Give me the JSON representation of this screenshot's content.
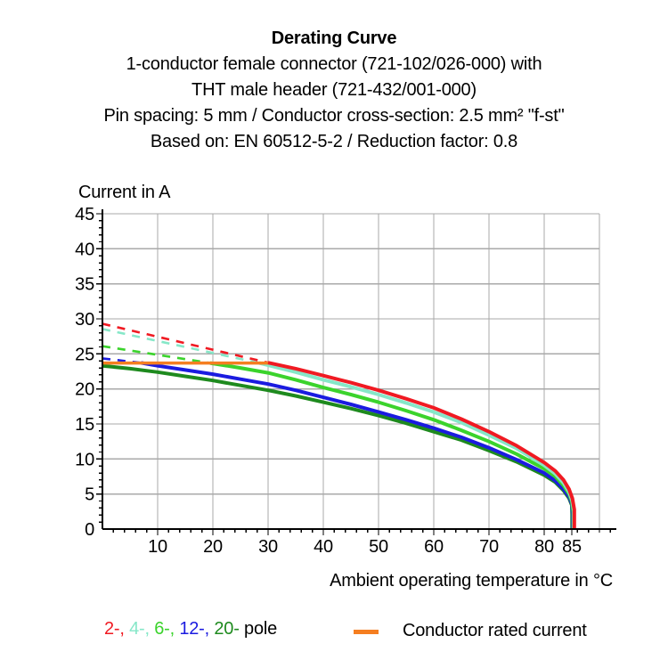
{
  "header": {
    "title": "Derating Curve",
    "subtitle_lines": [
      "1-conductor female connector (721-102/026-000) with",
      "THT male header (721-432/001-000)",
      "Pin spacing: 5 mm / Conductor cross-section: 2.5 mm² \"f-st\"",
      "Based on: EN 60512-5-2 / Reduction factor: 0.8"
    ]
  },
  "chart_data": {
    "type": "line",
    "title": "Derating Curve",
    "ylabel": "Current in A",
    "xlabel": "Ambient operating temperature in °C",
    "xlim": [
      0,
      93
    ],
    "ylim": [
      0,
      45
    ],
    "x_major_ticks": [
      10,
      20,
      30,
      40,
      50,
      60,
      70,
      80,
      85
    ],
    "x_minor_step": 2,
    "y_major_ticks": [
      0,
      5,
      10,
      15,
      20,
      25,
      30,
      35,
      40,
      45
    ],
    "y_minor_step": 1,
    "grid": {
      "color": "#a9a9a9",
      "x_lines": [
        10,
        20,
        30,
        40,
        50,
        60,
        70,
        80,
        90
      ],
      "y_lines": [
        5,
        10,
        15,
        20,
        25,
        30,
        35,
        40,
        45
      ]
    },
    "conductor_rated_current_A": 23.7,
    "max_temperature_C": 85,
    "series": [
      {
        "name": "2-pole-limit-dashed",
        "pole": "2",
        "style": "dashed",
        "width": 2.6,
        "color": "#f01a22",
        "points": [
          [
            0,
            29.3
          ],
          [
            30,
            23.75
          ]
        ]
      },
      {
        "name": "4-pole-limit-dashed",
        "pole": "4",
        "style": "dashed",
        "width": 2.6,
        "color": "#86e7c8",
        "points": [
          [
            0,
            28.55
          ],
          [
            28.4,
            23.7
          ]
        ]
      },
      {
        "name": "6-pole-limit-dashed",
        "pole": "6",
        "style": "dashed",
        "width": 2.6,
        "color": "#3bd32c",
        "points": [
          [
            0,
            26.1
          ],
          [
            19.5,
            23.7
          ]
        ]
      },
      {
        "name": "12-pole-limit-dashed",
        "pole": "12",
        "style": "dashed",
        "width": 2.6,
        "color": "#1b1be0",
        "points": [
          [
            0,
            24.35
          ],
          [
            7,
            23.72
          ]
        ]
      },
      {
        "name": "20-pole",
        "pole": "20",
        "style": "solid",
        "width": 4,
        "color": "#1e8a1e",
        "points": [
          [
            0,
            23.3
          ],
          [
            5,
            22.9
          ],
          [
            10,
            22.4
          ],
          [
            15,
            21.8
          ],
          [
            20,
            21.2
          ],
          [
            25,
            20.5
          ],
          [
            30,
            19.8
          ],
          [
            35,
            19.0
          ],
          [
            40,
            18.1
          ],
          [
            45,
            17.2
          ],
          [
            50,
            16.2
          ],
          [
            55,
            15.1
          ],
          [
            60,
            13.9
          ],
          [
            65,
            12.7
          ],
          [
            70,
            11.2
          ],
          [
            75,
            9.6
          ],
          [
            80,
            7.7
          ],
          [
            82,
            6.7
          ],
          [
            83.5,
            5.5
          ],
          [
            84.5,
            4.4
          ],
          [
            85,
            3.4
          ],
          [
            85.05,
            2.1
          ],
          [
            85.05,
            0
          ]
        ]
      },
      {
        "name": "12-pole",
        "pole": "12",
        "style": "solid",
        "width": 4,
        "color": "#1b1be0",
        "points": [
          [
            7,
            23.72
          ],
          [
            10,
            23.3
          ],
          [
            15,
            22.7
          ],
          [
            20,
            22.1
          ],
          [
            25,
            21.4
          ],
          [
            30,
            20.7
          ],
          [
            35,
            19.8
          ],
          [
            40,
            18.8
          ],
          [
            45,
            17.8
          ],
          [
            50,
            16.7
          ],
          [
            55,
            15.6
          ],
          [
            60,
            14.4
          ],
          [
            65,
            13.1
          ],
          [
            70,
            11.6
          ],
          [
            75,
            9.9
          ],
          [
            80,
            8.0
          ],
          [
            82,
            6.9
          ],
          [
            83.5,
            5.7
          ],
          [
            84.5,
            4.6
          ],
          [
            85,
            3.6
          ],
          [
            85.15,
            2.2
          ],
          [
            85.15,
            0
          ]
        ]
      },
      {
        "name": "6-pole",
        "pole": "6",
        "style": "solid",
        "width": 4,
        "color": "#3bd32c",
        "points": [
          [
            19.5,
            23.7
          ],
          [
            25,
            23.0
          ],
          [
            30,
            22.3
          ],
          [
            35,
            21.3
          ],
          [
            40,
            20.2
          ],
          [
            45,
            19.2
          ],
          [
            50,
            18.1
          ],
          [
            55,
            16.9
          ],
          [
            60,
            15.6
          ],
          [
            65,
            14.1
          ],
          [
            70,
            12.5
          ],
          [
            75,
            10.7
          ],
          [
            80,
            8.6
          ],
          [
            82,
            7.5
          ],
          [
            83.5,
            6.2
          ],
          [
            84.5,
            5.0
          ],
          [
            85,
            3.9
          ],
          [
            85.25,
            2.4
          ],
          [
            85.25,
            0
          ]
        ]
      },
      {
        "name": "4-pole",
        "pole": "4",
        "style": "solid",
        "width": 4,
        "color": "#86e7c8",
        "points": [
          [
            28.4,
            23.7
          ],
          [
            35,
            22.4
          ],
          [
            40,
            21.3
          ],
          [
            45,
            20.3
          ],
          [
            50,
            19.2
          ],
          [
            55,
            18.0
          ],
          [
            60,
            16.7
          ],
          [
            65,
            15.2
          ],
          [
            70,
            13.4
          ],
          [
            75,
            11.5
          ],
          [
            80,
            9.1
          ],
          [
            82,
            7.9
          ],
          [
            83.5,
            6.6
          ],
          [
            84.5,
            5.3
          ],
          [
            85.05,
            4.1
          ],
          [
            85.35,
            2.6
          ],
          [
            85.35,
            0
          ]
        ]
      },
      {
        "name": "conductor-rated-current",
        "style": "solid",
        "width": 3.5,
        "color": "#f57e20",
        "points": [
          [
            0,
            23.7
          ],
          [
            30.3,
            23.7
          ]
        ]
      },
      {
        "name": "2-pole",
        "pole": "2",
        "style": "solid",
        "width": 4,
        "color": "#f01a22",
        "points": [
          [
            30,
            23.75
          ],
          [
            35,
            22.9
          ],
          [
            40,
            21.9
          ],
          [
            45,
            20.9
          ],
          [
            50,
            19.8
          ],
          [
            55,
            18.6
          ],
          [
            60,
            17.3
          ],
          [
            65,
            15.7
          ],
          [
            70,
            13.9
          ],
          [
            75,
            11.9
          ],
          [
            80,
            9.5
          ],
          [
            82,
            8.3
          ],
          [
            83.5,
            7.0
          ],
          [
            84.5,
            5.7
          ],
          [
            85.1,
            4.4
          ],
          [
            85.45,
            2.8
          ],
          [
            85.45,
            0
          ]
        ]
      }
    ]
  },
  "legend": {
    "poles": [
      {
        "label": "2-",
        "color": "#f01a22"
      },
      {
        "label": "4-",
        "color": "#86e7c8"
      },
      {
        "label": "6-",
        "color": "#3bd32c"
      },
      {
        "label": "12-",
        "color": "#1b1be0"
      },
      {
        "label": "20-",
        "color": "#1e8a1e"
      }
    ],
    "poles_suffix": "pole",
    "rated_label": "Conductor rated current",
    "rated_color": "#f57e20"
  },
  "colors": {
    "background": "#ffffff",
    "axis": "#000000",
    "grid": "#a9a9a9",
    "text": "#000000"
  }
}
